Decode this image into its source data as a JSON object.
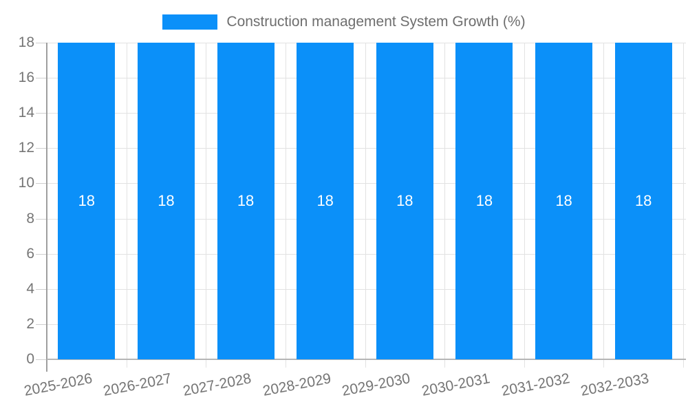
{
  "chart_data": {
    "type": "bar",
    "title": "Construction management System Growth (%)",
    "categories": [
      "2025-2026",
      "2026-2027",
      "2027-2028",
      "2028-2029",
      "2029-2030",
      "2030-2031",
      "2031-2032",
      "2032-2033"
    ],
    "values": [
      18,
      18,
      18,
      18,
      18,
      18,
      18,
      18
    ],
    "bar_value_labels": [
      "18",
      "18",
      "18",
      "18",
      "18",
      "18",
      "18",
      "18"
    ],
    "xlabel": "",
    "ylabel": "",
    "ylim": [
      0,
      18
    ],
    "yticks": [
      0,
      2,
      4,
      6,
      8,
      10,
      12,
      14,
      16,
      18
    ],
    "grid": true,
    "legend_position": "top-center",
    "series_name": "Construction management System Growth (%)"
  },
  "colors": {
    "bar": "#0b90f9",
    "bar_value_label": "#ffffff",
    "gridline": "#e2e2e2",
    "y_axis_line": "#9e9e9e",
    "x_baseline": "#b5b5b5",
    "tick_text": "#757575",
    "legend_text": "#6e6e6e",
    "background": "#ffffff"
  }
}
